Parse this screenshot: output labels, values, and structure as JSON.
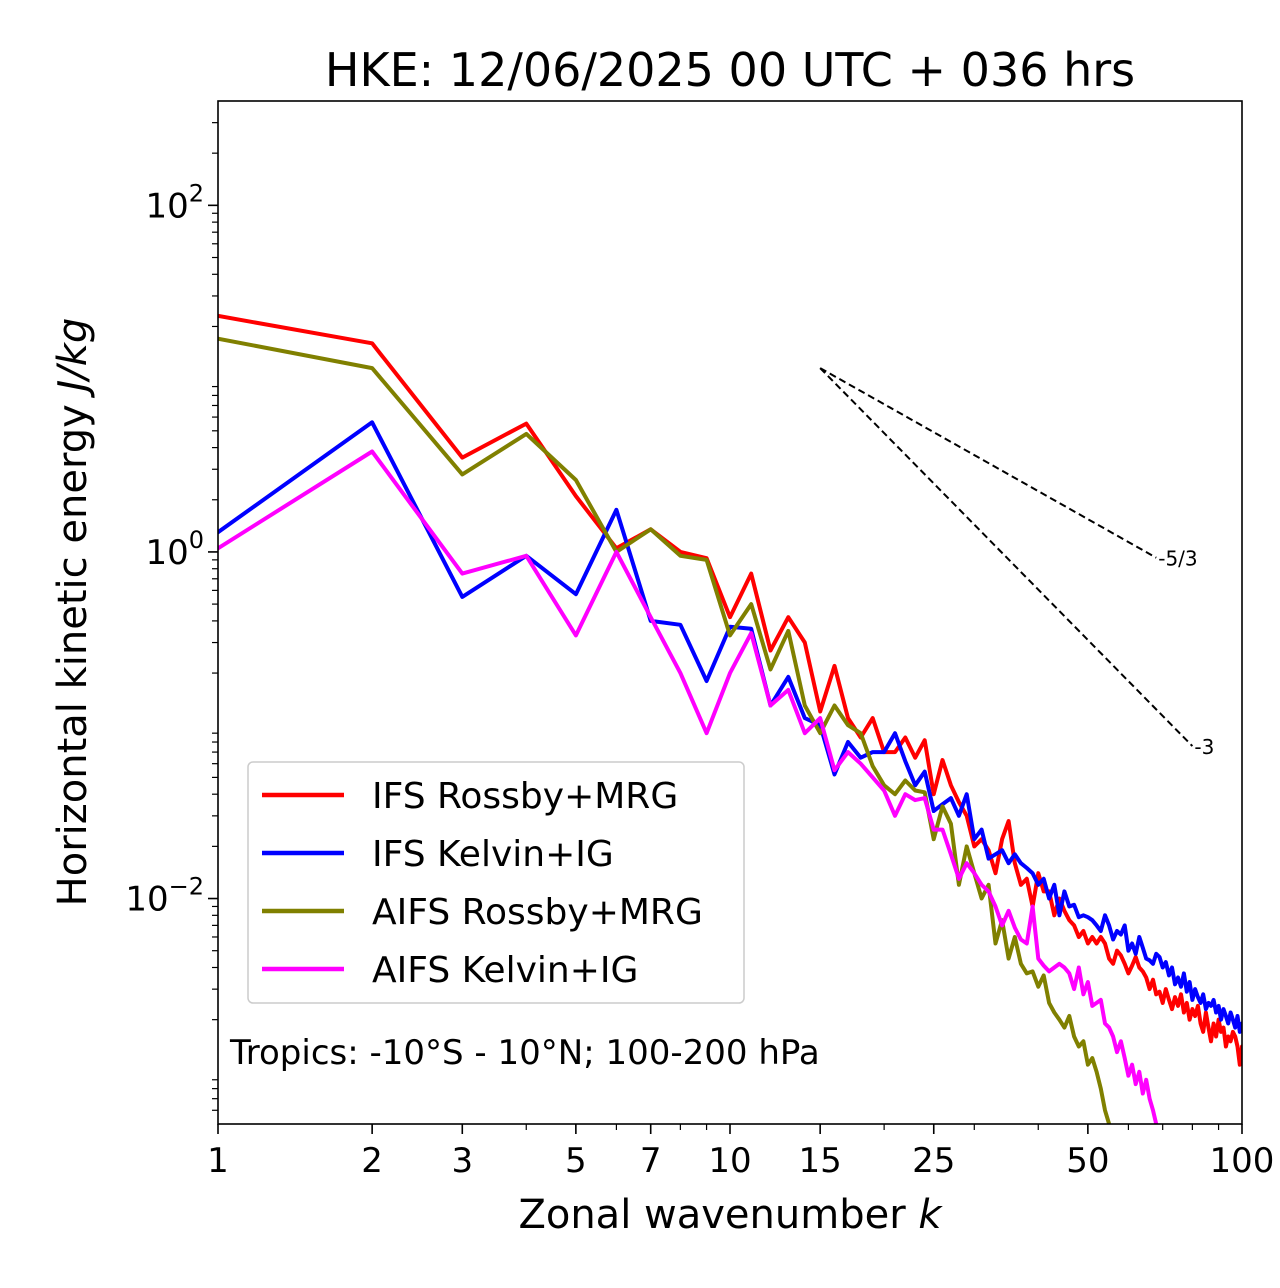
{
  "chart_data": {
    "type": "line",
    "title": "HKE: 12/06/2025 00 UTC + 036 hrs",
    "xlabel": "Zonal wavenumber",
    "xlabel_var": "k",
    "ylabel": "Horizontal kinetic energy",
    "ylabel_units": "J/kg",
    "xscale": "log",
    "yscale": "log",
    "xlim": [
      1,
      100
    ],
    "ylim": [
      0.0005,
      400
    ],
    "x_ticks": [
      1,
      2,
      3,
      5,
      7,
      10,
      15,
      25,
      50,
      100
    ],
    "x_tick_labels": [
      "1",
      "2",
      "3",
      "5",
      "7",
      "10",
      "15",
      "25",
      "50",
      "100"
    ],
    "y_ticks": [
      0.01,
      1,
      100
    ],
    "y_tick_labels": [
      {
        "base": "10",
        "exp": "−2"
      },
      {
        "base": "10",
        "exp": "0"
      },
      {
        "base": "10",
        "exp": "2"
      }
    ],
    "legend_position": "lower-left",
    "annotation": "Tropics: -10°S - 10°N; 100-200 hPa",
    "reference_lines": [
      {
        "label": "-5/3",
        "slope": -1.6667,
        "x_start": 15,
        "y_start": 11.5,
        "x_end": 68
      },
      {
        "label": "-3",
        "slope": -3,
        "x_start": 15,
        "y_start": 11.5,
        "x_end": 80
      }
    ],
    "series": [
      {
        "name": "IFS Rossby+MRG",
        "color": "#ff0000",
        "x": [
          1,
          2,
          3,
          4,
          5,
          6,
          7,
          8,
          9,
          10,
          11,
          12,
          13,
          14,
          15,
          16,
          17,
          18,
          19,
          20,
          21,
          22,
          23,
          24,
          25,
          26,
          27,
          28,
          29,
          30,
          31,
          32,
          33,
          34,
          35,
          36,
          37,
          38,
          39,
          40,
          41,
          42,
          43,
          44,
          45,
          46,
          47,
          48,
          49,
          50,
          51,
          52,
          53,
          54,
          55,
          56,
          57,
          58,
          59,
          60,
          61,
          62,
          63,
          64,
          65,
          66,
          67,
          68,
          69,
          70,
          71,
          72,
          73,
          74,
          75,
          76,
          77,
          78,
          79,
          80,
          81,
          82,
          83,
          84,
          85,
          86,
          87,
          88,
          89,
          90,
          91,
          92,
          93,
          94,
          95,
          96,
          97,
          98,
          99,
          100
        ],
        "y": [
          23,
          16,
          3.5,
          5.5,
          2.1,
          1.05,
          1.35,
          1.0,
          0.92,
          0.42,
          0.75,
          0.27,
          0.42,
          0.3,
          0.12,
          0.22,
          0.11,
          0.085,
          0.11,
          0.07,
          0.07,
          0.085,
          0.065,
          0.082,
          0.04,
          0.063,
          0.045,
          0.036,
          0.03,
          0.02,
          0.022,
          0.019,
          0.014,
          0.022,
          0.028,
          0.016,
          0.012,
          0.013,
          0.009,
          0.014,
          0.011,
          0.011,
          0.008,
          0.01,
          0.0085,
          0.0075,
          0.007,
          0.006,
          0.0065,
          0.0055,
          0.006,
          0.0055,
          0.006,
          0.0055,
          0.0045,
          0.0042,
          0.005,
          0.0047,
          0.0042,
          0.0037,
          0.0041,
          0.0046,
          0.004,
          0.0038,
          0.0035,
          0.003,
          0.0034,
          0.0028,
          0.0029,
          0.0025,
          0.003,
          0.0026,
          0.0023,
          0.0027,
          0.0024,
          0.0028,
          0.0022,
          0.0025,
          0.002,
          0.0023,
          0.0021,
          0.0024,
          0.0019,
          0.0017,
          0.0022,
          0.0018,
          0.0015,
          0.0019,
          0.0016,
          0.002,
          0.0017,
          0.0018,
          0.0014,
          0.0016,
          0.0015,
          0.0017,
          0.0016,
          0.0014,
          0.0011,
          0.0014
        ]
      },
      {
        "name": "IFS Kelvin+IG",
        "color": "#0000ff",
        "x": [
          1,
          2,
          3,
          4,
          5,
          6,
          7,
          8,
          9,
          10,
          11,
          12,
          13,
          14,
          15,
          16,
          17,
          18,
          19,
          20,
          21,
          22,
          23,
          24,
          25,
          26,
          27,
          28,
          29,
          30,
          31,
          32,
          33,
          34,
          35,
          36,
          37,
          38,
          39,
          40,
          41,
          42,
          43,
          44,
          45,
          46,
          47,
          48,
          49,
          50,
          51,
          52,
          53,
          54,
          55,
          56,
          57,
          58,
          59,
          60,
          61,
          62,
          63,
          64,
          65,
          66,
          67,
          68,
          69,
          70,
          71,
          72,
          73,
          74,
          75,
          76,
          77,
          78,
          79,
          80,
          81,
          82,
          83,
          84,
          85,
          86,
          87,
          88,
          89,
          90,
          91,
          92,
          93,
          94,
          95,
          96,
          97,
          98,
          99,
          100
        ],
        "y": [
          1.3,
          5.6,
          0.55,
          0.95,
          0.57,
          1.75,
          0.4,
          0.38,
          0.18,
          0.37,
          0.36,
          0.13,
          0.19,
          0.11,
          0.1,
          0.052,
          0.08,
          0.065,
          0.07,
          0.07,
          0.09,
          0.062,
          0.045,
          0.054,
          0.032,
          0.035,
          0.038,
          0.03,
          0.04,
          0.022,
          0.025,
          0.017,
          0.018,
          0.019,
          0.016,
          0.018,
          0.016,
          0.015,
          0.014,
          0.012,
          0.013,
          0.01,
          0.012,
          0.008,
          0.011,
          0.009,
          0.0092,
          0.0078,
          0.008,
          0.0078,
          0.0075,
          0.007,
          0.0065,
          0.008,
          0.007,
          0.0058,
          0.0065,
          0.0062,
          0.007,
          0.005,
          0.0055,
          0.0048,
          0.006,
          0.0052,
          0.0045,
          0.0044,
          0.0042,
          0.0048,
          0.0046,
          0.004,
          0.0043,
          0.0036,
          0.004,
          0.0032,
          0.0035,
          0.0031,
          0.0037,
          0.0029,
          0.0033,
          0.0026,
          0.003,
          0.0027,
          0.0025,
          0.0028,
          0.0023,
          0.0025,
          0.0024,
          0.0026,
          0.0022,
          0.0024,
          0.002,
          0.0023,
          0.0021,
          0.0019,
          0.0022,
          0.002,
          0.0018,
          0.0021,
          0.0017,
          0.0019
        ]
      },
      {
        "name": "AIFS Rossby+MRG",
        "color": "#808000",
        "x": [
          1,
          2,
          3,
          4,
          5,
          6,
          7,
          8,
          9,
          10,
          11,
          12,
          13,
          14,
          15,
          16,
          17,
          18,
          19,
          20,
          21,
          22,
          23,
          24,
          25,
          26,
          27,
          28,
          29,
          30,
          31,
          32,
          33,
          34,
          35,
          36,
          37,
          38,
          39,
          40,
          41,
          42,
          43,
          44,
          45,
          46,
          47,
          48,
          49,
          50,
          51,
          52,
          53,
          54,
          55
        ],
        "y": [
          17,
          11.5,
          2.8,
          4.8,
          2.6,
          1.0,
          1.35,
          0.95,
          0.9,
          0.33,
          0.5,
          0.21,
          0.35,
          0.13,
          0.09,
          0.13,
          0.1,
          0.09,
          0.058,
          0.045,
          0.04,
          0.048,
          0.042,
          0.041,
          0.022,
          0.034,
          0.027,
          0.012,
          0.02,
          0.014,
          0.01,
          0.012,
          0.0055,
          0.0075,
          0.0045,
          0.006,
          0.0042,
          0.0037,
          0.0038,
          0.0031,
          0.0036,
          0.0025,
          0.0022,
          0.002,
          0.0018,
          0.0021,
          0.0016,
          0.0014,
          0.0015,
          0.0011,
          0.0012,
          0.001,
          0.0008,
          0.0006,
          0.0005
        ]
      },
      {
        "name": "AIFS Kelvin+IG",
        "color": "#ff00ff",
        "x": [
          1,
          2,
          3,
          4,
          5,
          6,
          7,
          8,
          9,
          10,
          11,
          12,
          13,
          14,
          15,
          16,
          17,
          18,
          19,
          20,
          21,
          22,
          23,
          24,
          25,
          26,
          27,
          28,
          29,
          30,
          31,
          32,
          33,
          34,
          35,
          36,
          37,
          38,
          39,
          40,
          41,
          42,
          43,
          44,
          45,
          46,
          47,
          48,
          49,
          50,
          51,
          52,
          53,
          54,
          55,
          56,
          57,
          58,
          59,
          60,
          61,
          62,
          63,
          64,
          65,
          66,
          67,
          68
        ],
        "y": [
          1.05,
          3.8,
          0.75,
          0.95,
          0.33,
          1.0,
          0.42,
          0.2,
          0.09,
          0.2,
          0.34,
          0.13,
          0.16,
          0.09,
          0.11,
          0.055,
          0.07,
          0.06,
          0.05,
          0.042,
          0.03,
          0.04,
          0.037,
          0.038,
          0.025,
          0.025,
          0.018,
          0.013,
          0.016,
          0.014,
          0.012,
          0.011,
          0.009,
          0.007,
          0.0085,
          0.0068,
          0.0058,
          0.0055,
          0.009,
          0.0045,
          0.0041,
          0.0038,
          0.004,
          0.0042,
          0.004,
          0.0037,
          0.003,
          0.004,
          0.0028,
          0.0033,
          0.0024,
          0.0025,
          0.0026,
          0.0019,
          0.0018,
          0.0016,
          0.0013,
          0.0015,
          0.0012,
          0.00095,
          0.0011,
          0.00085,
          0.001,
          0.00075,
          0.0009,
          0.0007,
          0.0006,
          0.0005
        ]
      }
    ]
  }
}
